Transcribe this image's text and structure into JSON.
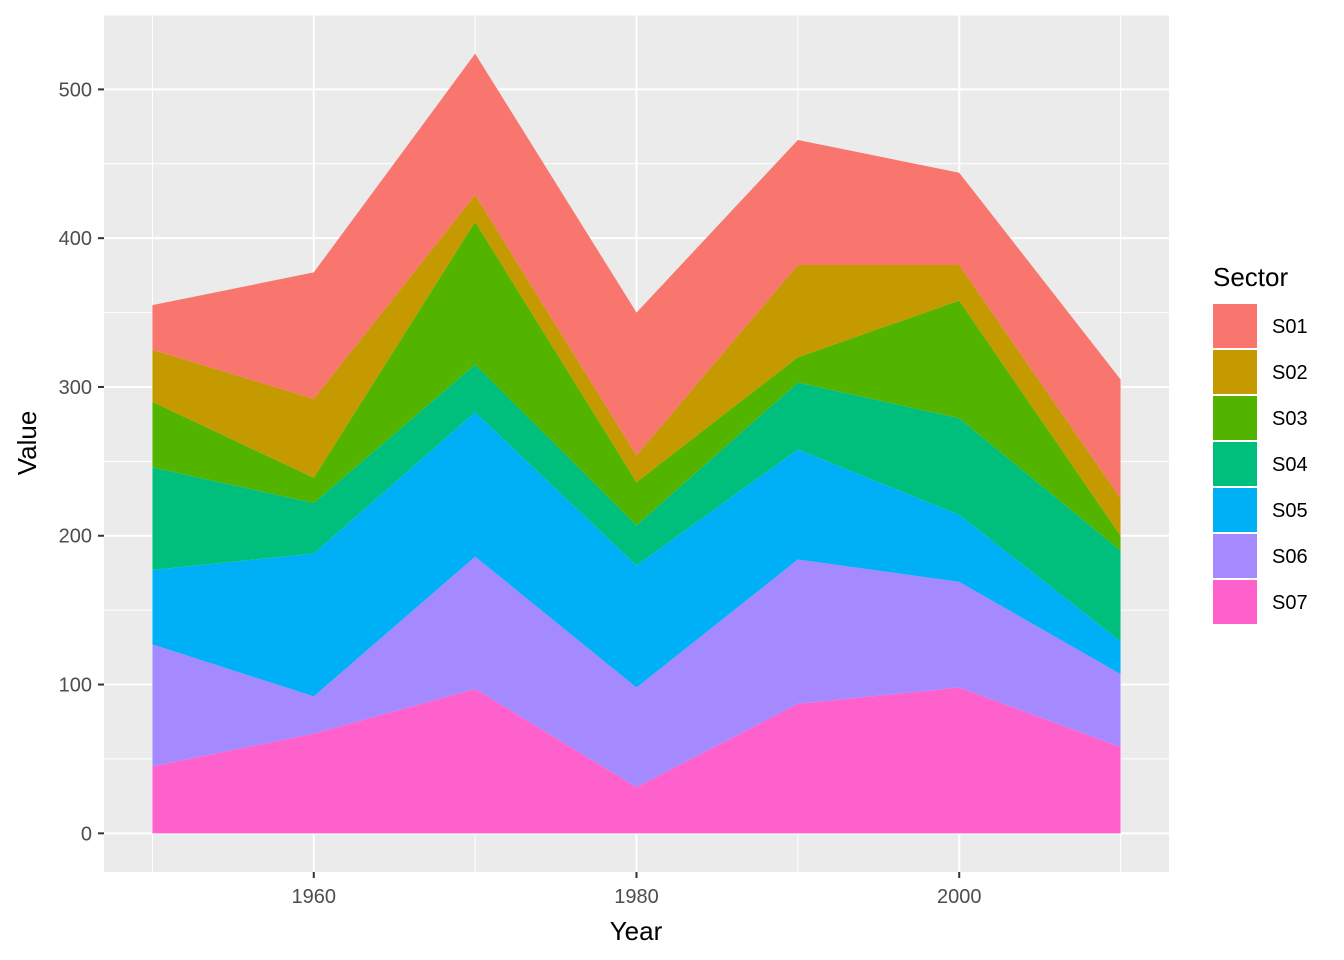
{
  "chart_data": {
    "type": "area",
    "stacked": true,
    "xlabel": "Year",
    "ylabel": "Value",
    "x": [
      1950,
      1960,
      1970,
      1980,
      1990,
      2000,
      2010
    ],
    "xlim": [
      1947,
      2013
    ],
    "ylim": [
      -26,
      550
    ],
    "x_ticks": [
      1960,
      1980,
      2000
    ],
    "y_ticks": [
      0,
      100,
      200,
      300,
      400,
      500
    ],
    "x_tick_labels": [
      "1960",
      "1980",
      "2000"
    ],
    "y_tick_labels": [
      "0",
      "100",
      "200",
      "300",
      "400",
      "500"
    ],
    "grid": true,
    "legend": {
      "title": "Sector",
      "placement": "right"
    },
    "series": [
      {
        "name": "S07",
        "color": "#FF61CC",
        "values": [
          45,
          67,
          97,
          31,
          87,
          98,
          58
        ]
      },
      {
        "name": "S06",
        "color": "#A58AFF",
        "values": [
          82,
          25,
          89,
          67,
          97,
          71,
          49
        ]
      },
      {
        "name": "S05",
        "color": "#00B0F6",
        "values": [
          50,
          96,
          97,
          82,
          74,
          45,
          22
        ]
      },
      {
        "name": "S04",
        "color": "#00BF7D",
        "values": [
          69,
          34,
          32,
          27,
          45,
          65,
          61
        ]
      },
      {
        "name": "S03",
        "color": "#53B400",
        "values": [
          44,
          17,
          96,
          29,
          17,
          79,
          10
        ]
      },
      {
        "name": "S02",
        "color": "#C49A00",
        "values": [
          35,
          53,
          18,
          18,
          62,
          24,
          25
        ]
      },
      {
        "name": "S01",
        "color": "#F8766D",
        "values": [
          30,
          85,
          95,
          96,
          84,
          62,
          80
        ]
      }
    ],
    "legend_order": [
      "S01",
      "S02",
      "S03",
      "S04",
      "S05",
      "S06",
      "S07"
    ]
  }
}
